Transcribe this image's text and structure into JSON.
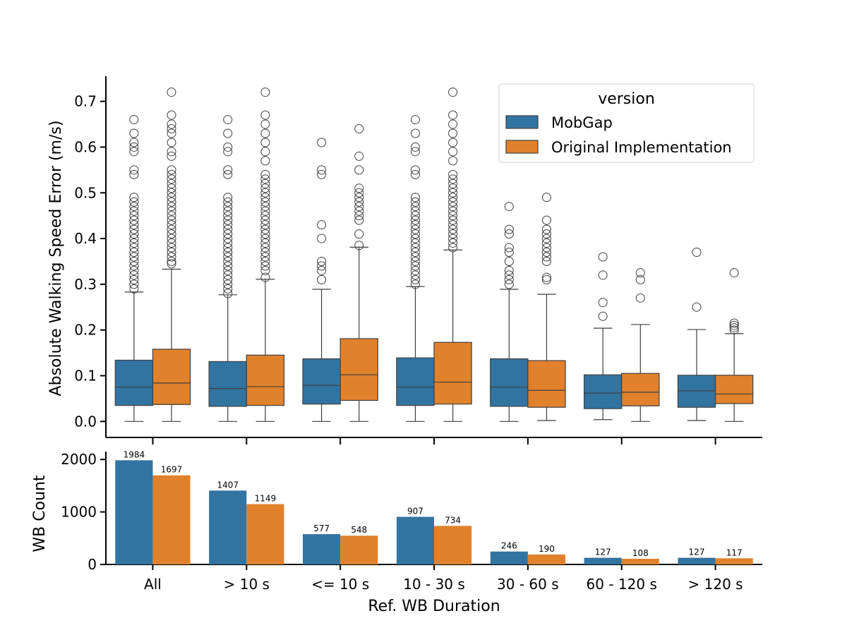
{
  "chart_data": [
    {
      "type": "box",
      "ylabel": "Absolute Walking Speed Error (m/s)",
      "ylim": [
        -0.035,
        0.755
      ],
      "yticks": [
        "0.0",
        "0.1",
        "0.2",
        "0.3",
        "0.4",
        "0.5",
        "0.6",
        "0.7"
      ],
      "categories": [
        "All",
        "> 10 s",
        "<= 10 s",
        "10 - 30 s",
        "30 - 60 s",
        "60 - 120 s",
        "> 120 s"
      ],
      "legend": {
        "title": "version",
        "placement": "top-right"
      },
      "series": [
        {
          "name": "MobGap",
          "color": "#3274a1",
          "boxes": [
            {
              "min": 0.0,
              "q1": 0.035,
              "median": 0.075,
              "q3": 0.134,
              "whisker_high": 0.283,
              "outliers": [
                0.29,
                0.3,
                0.31,
                0.32,
                0.33,
                0.34,
                0.35,
                0.36,
                0.37,
                0.38,
                0.39,
                0.4,
                0.41,
                0.42,
                0.43,
                0.44,
                0.45,
                0.46,
                0.47,
                0.48,
                0.49,
                0.54,
                0.55,
                0.59,
                0.6,
                0.61,
                0.63,
                0.66
              ]
            },
            {
              "min": 0.0,
              "q1": 0.033,
              "median": 0.072,
              "q3": 0.131,
              "whisker_high": 0.277,
              "outliers": [
                0.28,
                0.29,
                0.3,
                0.31,
                0.32,
                0.33,
                0.34,
                0.35,
                0.36,
                0.37,
                0.38,
                0.39,
                0.4,
                0.41,
                0.42,
                0.43,
                0.44,
                0.45,
                0.46,
                0.47,
                0.48,
                0.49,
                0.54,
                0.55,
                0.59,
                0.6,
                0.63,
                0.66
              ]
            },
            {
              "min": 0.0,
              "q1": 0.038,
              "median": 0.079,
              "q3": 0.137,
              "whisker_high": 0.289,
              "outliers": [
                0.31,
                0.33,
                0.34,
                0.35,
                0.4,
                0.43,
                0.54,
                0.55,
                0.61
              ]
            },
            {
              "min": 0.0,
              "q1": 0.035,
              "median": 0.075,
              "q3": 0.139,
              "whisker_high": 0.295,
              "outliers": [
                0.3,
                0.31,
                0.32,
                0.33,
                0.34,
                0.35,
                0.36,
                0.37,
                0.38,
                0.39,
                0.4,
                0.41,
                0.42,
                0.43,
                0.44,
                0.45,
                0.46,
                0.47,
                0.48,
                0.49,
                0.54,
                0.55,
                0.59,
                0.6,
                0.63,
                0.66
              ]
            },
            {
              "min": 0.0,
              "q1": 0.033,
              "median": 0.075,
              "q3": 0.137,
              "whisker_high": 0.289,
              "outliers": [
                0.3,
                0.31,
                0.32,
                0.33,
                0.35,
                0.37,
                0.38,
                0.41,
                0.42,
                0.47
              ]
            },
            {
              "min": 0.004,
              "q1": 0.028,
              "median": 0.062,
              "q3": 0.102,
              "whisker_high": 0.204,
              "outliers": [
                0.23,
                0.26,
                0.32,
                0.36
              ]
            },
            {
              "min": 0.002,
              "q1": 0.031,
              "median": 0.067,
              "q3": 0.101,
              "whisker_high": 0.201,
              "outliers": [
                0.25,
                0.37
              ]
            }
          ]
        },
        {
          "name": "Original Implementation",
          "color": "#e1812c",
          "boxes": [
            {
              "min": 0.0,
              "q1": 0.037,
              "median": 0.084,
              "q3": 0.158,
              "whisker_high": 0.333,
              "outliers": [
                0.345,
                0.35,
                0.36,
                0.37,
                0.38,
                0.39,
                0.4,
                0.41,
                0.42,
                0.43,
                0.44,
                0.45,
                0.46,
                0.47,
                0.48,
                0.49,
                0.5,
                0.51,
                0.52,
                0.53,
                0.54,
                0.55,
                0.58,
                0.59,
                0.61,
                0.63,
                0.64,
                0.65,
                0.67,
                0.72
              ]
            },
            {
              "min": 0.0,
              "q1": 0.035,
              "median": 0.076,
              "q3": 0.145,
              "whisker_high": 0.311,
              "outliers": [
                0.315,
                0.33,
                0.34,
                0.35,
                0.36,
                0.37,
                0.38,
                0.39,
                0.4,
                0.41,
                0.42,
                0.43,
                0.44,
                0.45,
                0.46,
                0.47,
                0.48,
                0.49,
                0.5,
                0.51,
                0.52,
                0.53,
                0.54,
                0.57,
                0.59,
                0.61,
                0.63,
                0.65,
                0.67,
                0.72
              ]
            },
            {
              "min": 0.0,
              "q1": 0.046,
              "median": 0.102,
              "q3": 0.181,
              "whisker_high": 0.381,
              "outliers": [
                0.385,
                0.41,
                0.44,
                0.45,
                0.46,
                0.47,
                0.48,
                0.49,
                0.5,
                0.51,
                0.55,
                0.58,
                0.64
              ]
            },
            {
              "min": 0.0,
              "q1": 0.038,
              "median": 0.086,
              "q3": 0.173,
              "whisker_high": 0.375,
              "outliers": [
                0.38,
                0.39,
                0.4,
                0.41,
                0.42,
                0.43,
                0.44,
                0.45,
                0.46,
                0.47,
                0.48,
                0.49,
                0.5,
                0.51,
                0.52,
                0.53,
                0.54,
                0.57,
                0.59,
                0.61,
                0.63,
                0.65,
                0.67,
                0.72
              ]
            },
            {
              "min": 0.002,
              "q1": 0.031,
              "median": 0.068,
              "q3": 0.133,
              "whisker_high": 0.278,
              "outliers": [
                0.31,
                0.315,
                0.35,
                0.36,
                0.37,
                0.38,
                0.39,
                0.4,
                0.41,
                0.42,
                0.44,
                0.49
              ]
            },
            {
              "min": 0.0,
              "q1": 0.034,
              "median": 0.064,
              "q3": 0.105,
              "whisker_high": 0.212,
              "outliers": [
                0.27,
                0.31,
                0.325
              ]
            },
            {
              "min": 0.0,
              "q1": 0.039,
              "median": 0.06,
              "q3": 0.101,
              "whisker_high": 0.192,
              "outliers": [
                0.2,
                0.205,
                0.21,
                0.215,
                0.325
              ]
            }
          ]
        }
      ]
    },
    {
      "type": "bar",
      "xlabel": "Ref. WB Duration",
      "ylabel": "WB Count",
      "ylim": [
        0,
        2150
      ],
      "yticks": [
        "0",
        "1000",
        "2000"
      ],
      "categories": [
        "All",
        "> 10 s",
        "<= 10 s",
        "10 - 30 s",
        "30 - 60 s",
        "60 - 120 s",
        "> 120 s"
      ],
      "series": [
        {
          "name": "MobGap",
          "color": "#3274a1",
          "values": [
            1984,
            1407,
            577,
            907,
            246,
            127,
            127
          ]
        },
        {
          "name": "Original Implementation",
          "color": "#e1812c",
          "values": [
            1697,
            1149,
            548,
            734,
            190,
            108,
            117
          ]
        }
      ]
    }
  ]
}
